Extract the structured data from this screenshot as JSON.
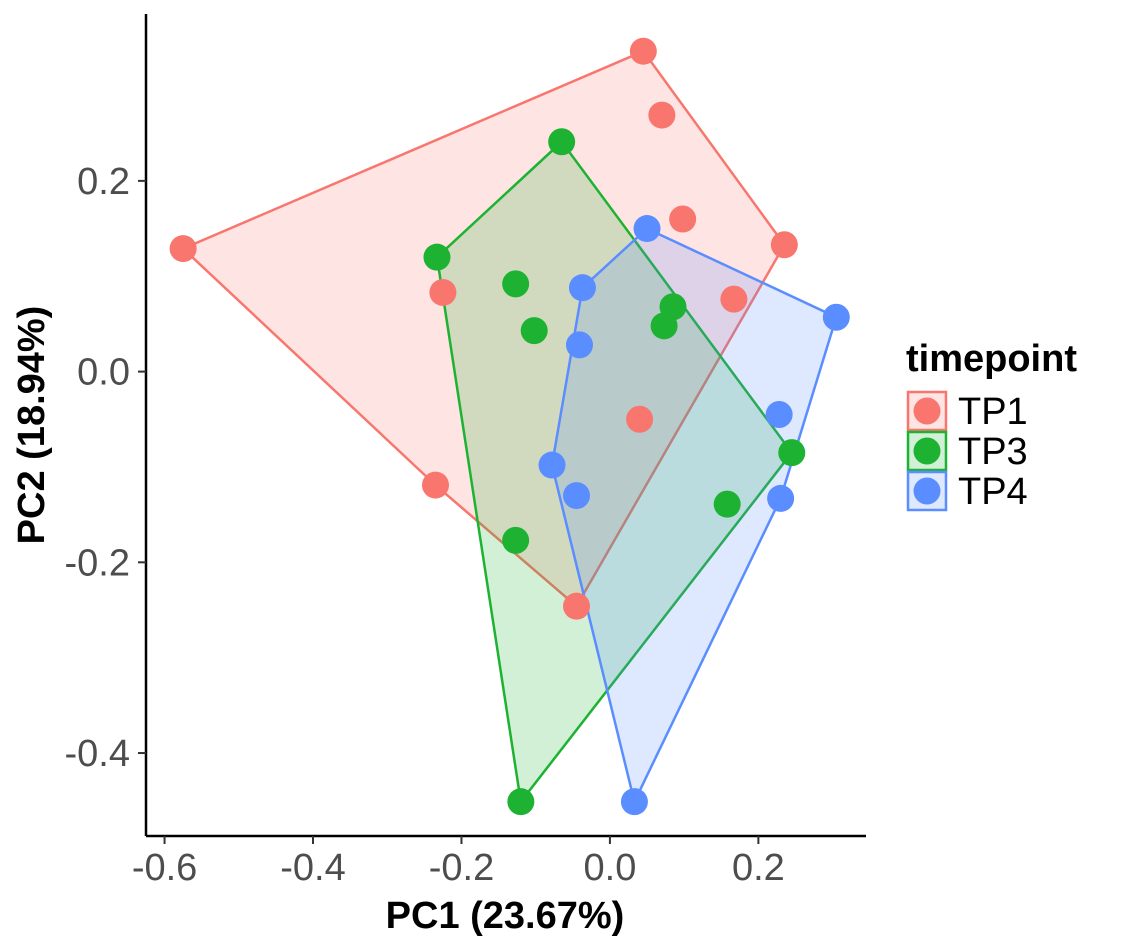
{
  "chart_data": {
    "type": "scatter",
    "xlabel": "PC1 (23.67%)",
    "ylabel": "PC2 (18.94%)",
    "xlim": [
      -0.625,
      0.345
    ],
    "ylim": [
      -0.487,
      0.375
    ],
    "xticks": [
      -0.6,
      -0.4,
      -0.2,
      0.0,
      0.2
    ],
    "xtick_labels": [
      "-0.6",
      "-0.4",
      "-0.2",
      "0.0",
      "0.2"
    ],
    "yticks": [
      -0.4,
      -0.2,
      0.0,
      0.2
    ],
    "ytick_labels": [
      "-0.4",
      "-0.2",
      "0.0",
      "0.2"
    ],
    "grid": false,
    "hulls": true,
    "legend": {
      "title": "timepoint",
      "placement": "right"
    },
    "series": [
      {
        "name": "TP1",
        "color": "#F8766D",
        "points": [
          [
            0.045,
            0.336
          ],
          [
            0.07,
            0.269
          ],
          [
            0.098,
            0.16
          ],
          [
            0.235,
            0.133
          ],
          [
            -0.575,
            0.129
          ],
          [
            -0.225,
            0.083
          ],
          [
            0.167,
            0.076
          ],
          [
            0.04,
            -0.05
          ],
          [
            -0.235,
            -0.119
          ],
          [
            -0.045,
            -0.246
          ]
        ],
        "hull": [
          [
            0.045,
            0.336
          ],
          [
            0.235,
            0.133
          ],
          [
            -0.045,
            -0.246
          ],
          [
            -0.235,
            -0.119
          ],
          [
            -0.575,
            0.129
          ]
        ]
      },
      {
        "name": "TP3",
        "color": "#1DB232",
        "points": [
          [
            -0.065,
            0.241
          ],
          [
            -0.233,
            0.12
          ],
          [
            -0.127,
            0.092
          ],
          [
            -0.102,
            0.043
          ],
          [
            0.085,
            0.068
          ],
          [
            0.073,
            0.048
          ],
          [
            0.245,
            -0.085
          ],
          [
            0.158,
            -0.139
          ],
          [
            -0.127,
            -0.177
          ],
          [
            -0.12,
            -0.451
          ]
        ],
        "hull": [
          [
            -0.065,
            0.241
          ],
          [
            0.245,
            -0.085
          ],
          [
            -0.12,
            -0.451
          ],
          [
            -0.233,
            0.12
          ]
        ]
      },
      {
        "name": "TP4",
        "color": "#5A8DFF",
        "points": [
          [
            0.05,
            0.15
          ],
          [
            0.305,
            0.057
          ],
          [
            -0.037,
            0.088
          ],
          [
            -0.041,
            0.028
          ],
          [
            0.228,
            -0.045
          ],
          [
            -0.078,
            -0.098
          ],
          [
            -0.045,
            -0.13
          ],
          [
            0.23,
            -0.133
          ],
          [
            0.033,
            -0.451
          ]
        ],
        "hull": [
          [
            0.05,
            0.15
          ],
          [
            0.305,
            0.057
          ],
          [
            0.23,
            -0.133
          ],
          [
            0.033,
            -0.451
          ],
          [
            -0.078,
            -0.098
          ],
          [
            -0.037,
            0.088
          ]
        ]
      }
    ]
  }
}
